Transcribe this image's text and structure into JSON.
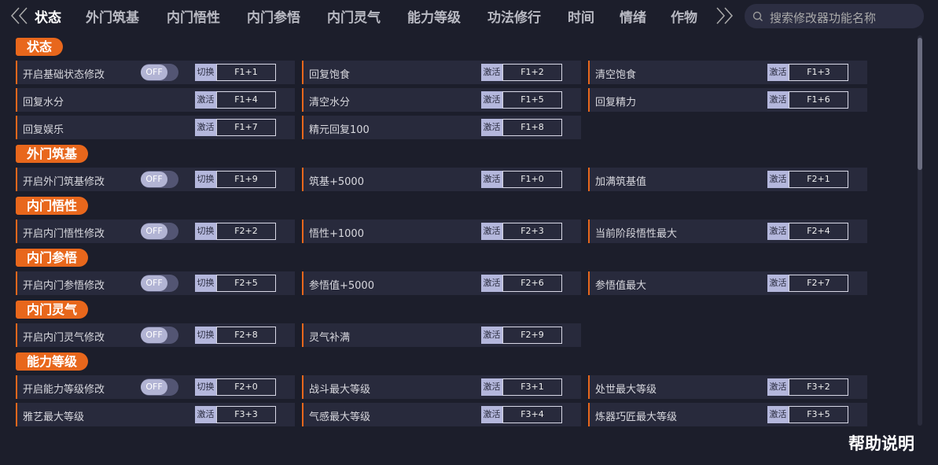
{
  "nav": {
    "tabs": [
      "状态",
      "外门筑基",
      "内门悟性",
      "内门参悟",
      "内门灵气",
      "能力等级",
      "功法修行",
      "时间",
      "情绪",
      "作物"
    ],
    "search_placeholder": "搜索修改器功能名称"
  },
  "sections": [
    {
      "title": "状态",
      "items": [
        {
          "label": "开启基础状态修改",
          "toggle": "OFF",
          "button": "切换",
          "hotkey": "F1+1"
        },
        {
          "label": "回复饱食",
          "button": "激活",
          "hotkey": "F1+2"
        },
        {
          "label": "清空饱食",
          "button": "激活",
          "hotkey": "F1+3"
        },
        {
          "label": "回复水分",
          "button": "激活",
          "hotkey": "F1+4"
        },
        {
          "label": "清空水分",
          "button": "激活",
          "hotkey": "F1+5"
        },
        {
          "label": "回复精力",
          "button": "激活",
          "hotkey": "F1+6"
        },
        {
          "label": "回复娱乐",
          "button": "激活",
          "hotkey": "F1+7"
        },
        {
          "label": "精元回复100",
          "button": "激活",
          "hotkey": "F1+8"
        }
      ]
    },
    {
      "title": "外门筑基",
      "items": [
        {
          "label": "开启外门筑基修改",
          "toggle": "OFF",
          "button": "切换",
          "hotkey": "F1+9"
        },
        {
          "label": "筑基+5000",
          "button": "激活",
          "hotkey": "F1+0"
        },
        {
          "label": "加满筑基值",
          "button": "激活",
          "hotkey": "F2+1"
        }
      ]
    },
    {
      "title": "内门悟性",
      "items": [
        {
          "label": "开启内门悟性修改",
          "toggle": "OFF",
          "button": "切换",
          "hotkey": "F2+2"
        },
        {
          "label": "悟性+1000",
          "button": "激活",
          "hotkey": "F2+3"
        },
        {
          "label": "当前阶段悟性最大",
          "button": "激活",
          "hotkey": "F2+4"
        }
      ]
    },
    {
      "title": "内门参悟",
      "items": [
        {
          "label": "开启内门参悟修改",
          "toggle": "OFF",
          "button": "切换",
          "hotkey": "F2+5"
        },
        {
          "label": "参悟值+5000",
          "button": "激活",
          "hotkey": "F2+6"
        },
        {
          "label": "参悟值最大",
          "button": "激活",
          "hotkey": "F2+7"
        }
      ]
    },
    {
      "title": "内门灵气",
      "items": [
        {
          "label": "开启内门灵气修改",
          "toggle": "OFF",
          "button": "切换",
          "hotkey": "F2+8"
        },
        {
          "label": "灵气补满",
          "button": "激活",
          "hotkey": "F2+9"
        }
      ]
    },
    {
      "title": "能力等级",
      "items": [
        {
          "label": "开启能力等级修改",
          "toggle": "OFF",
          "button": "切换",
          "hotkey": "F2+0"
        },
        {
          "label": "战斗最大等级",
          "button": "激活",
          "hotkey": "F3+1"
        },
        {
          "label": "处世最大等级",
          "button": "激活",
          "hotkey": "F3+2"
        },
        {
          "label": "雅艺最大等级",
          "button": "激活",
          "hotkey": "F3+3"
        },
        {
          "label": "气感最大等级",
          "button": "激活",
          "hotkey": "F3+4"
        },
        {
          "label": "炼器巧匠最大等级",
          "button": "激活",
          "hotkey": "F3+5"
        }
      ]
    }
  ],
  "help": "帮助说明"
}
